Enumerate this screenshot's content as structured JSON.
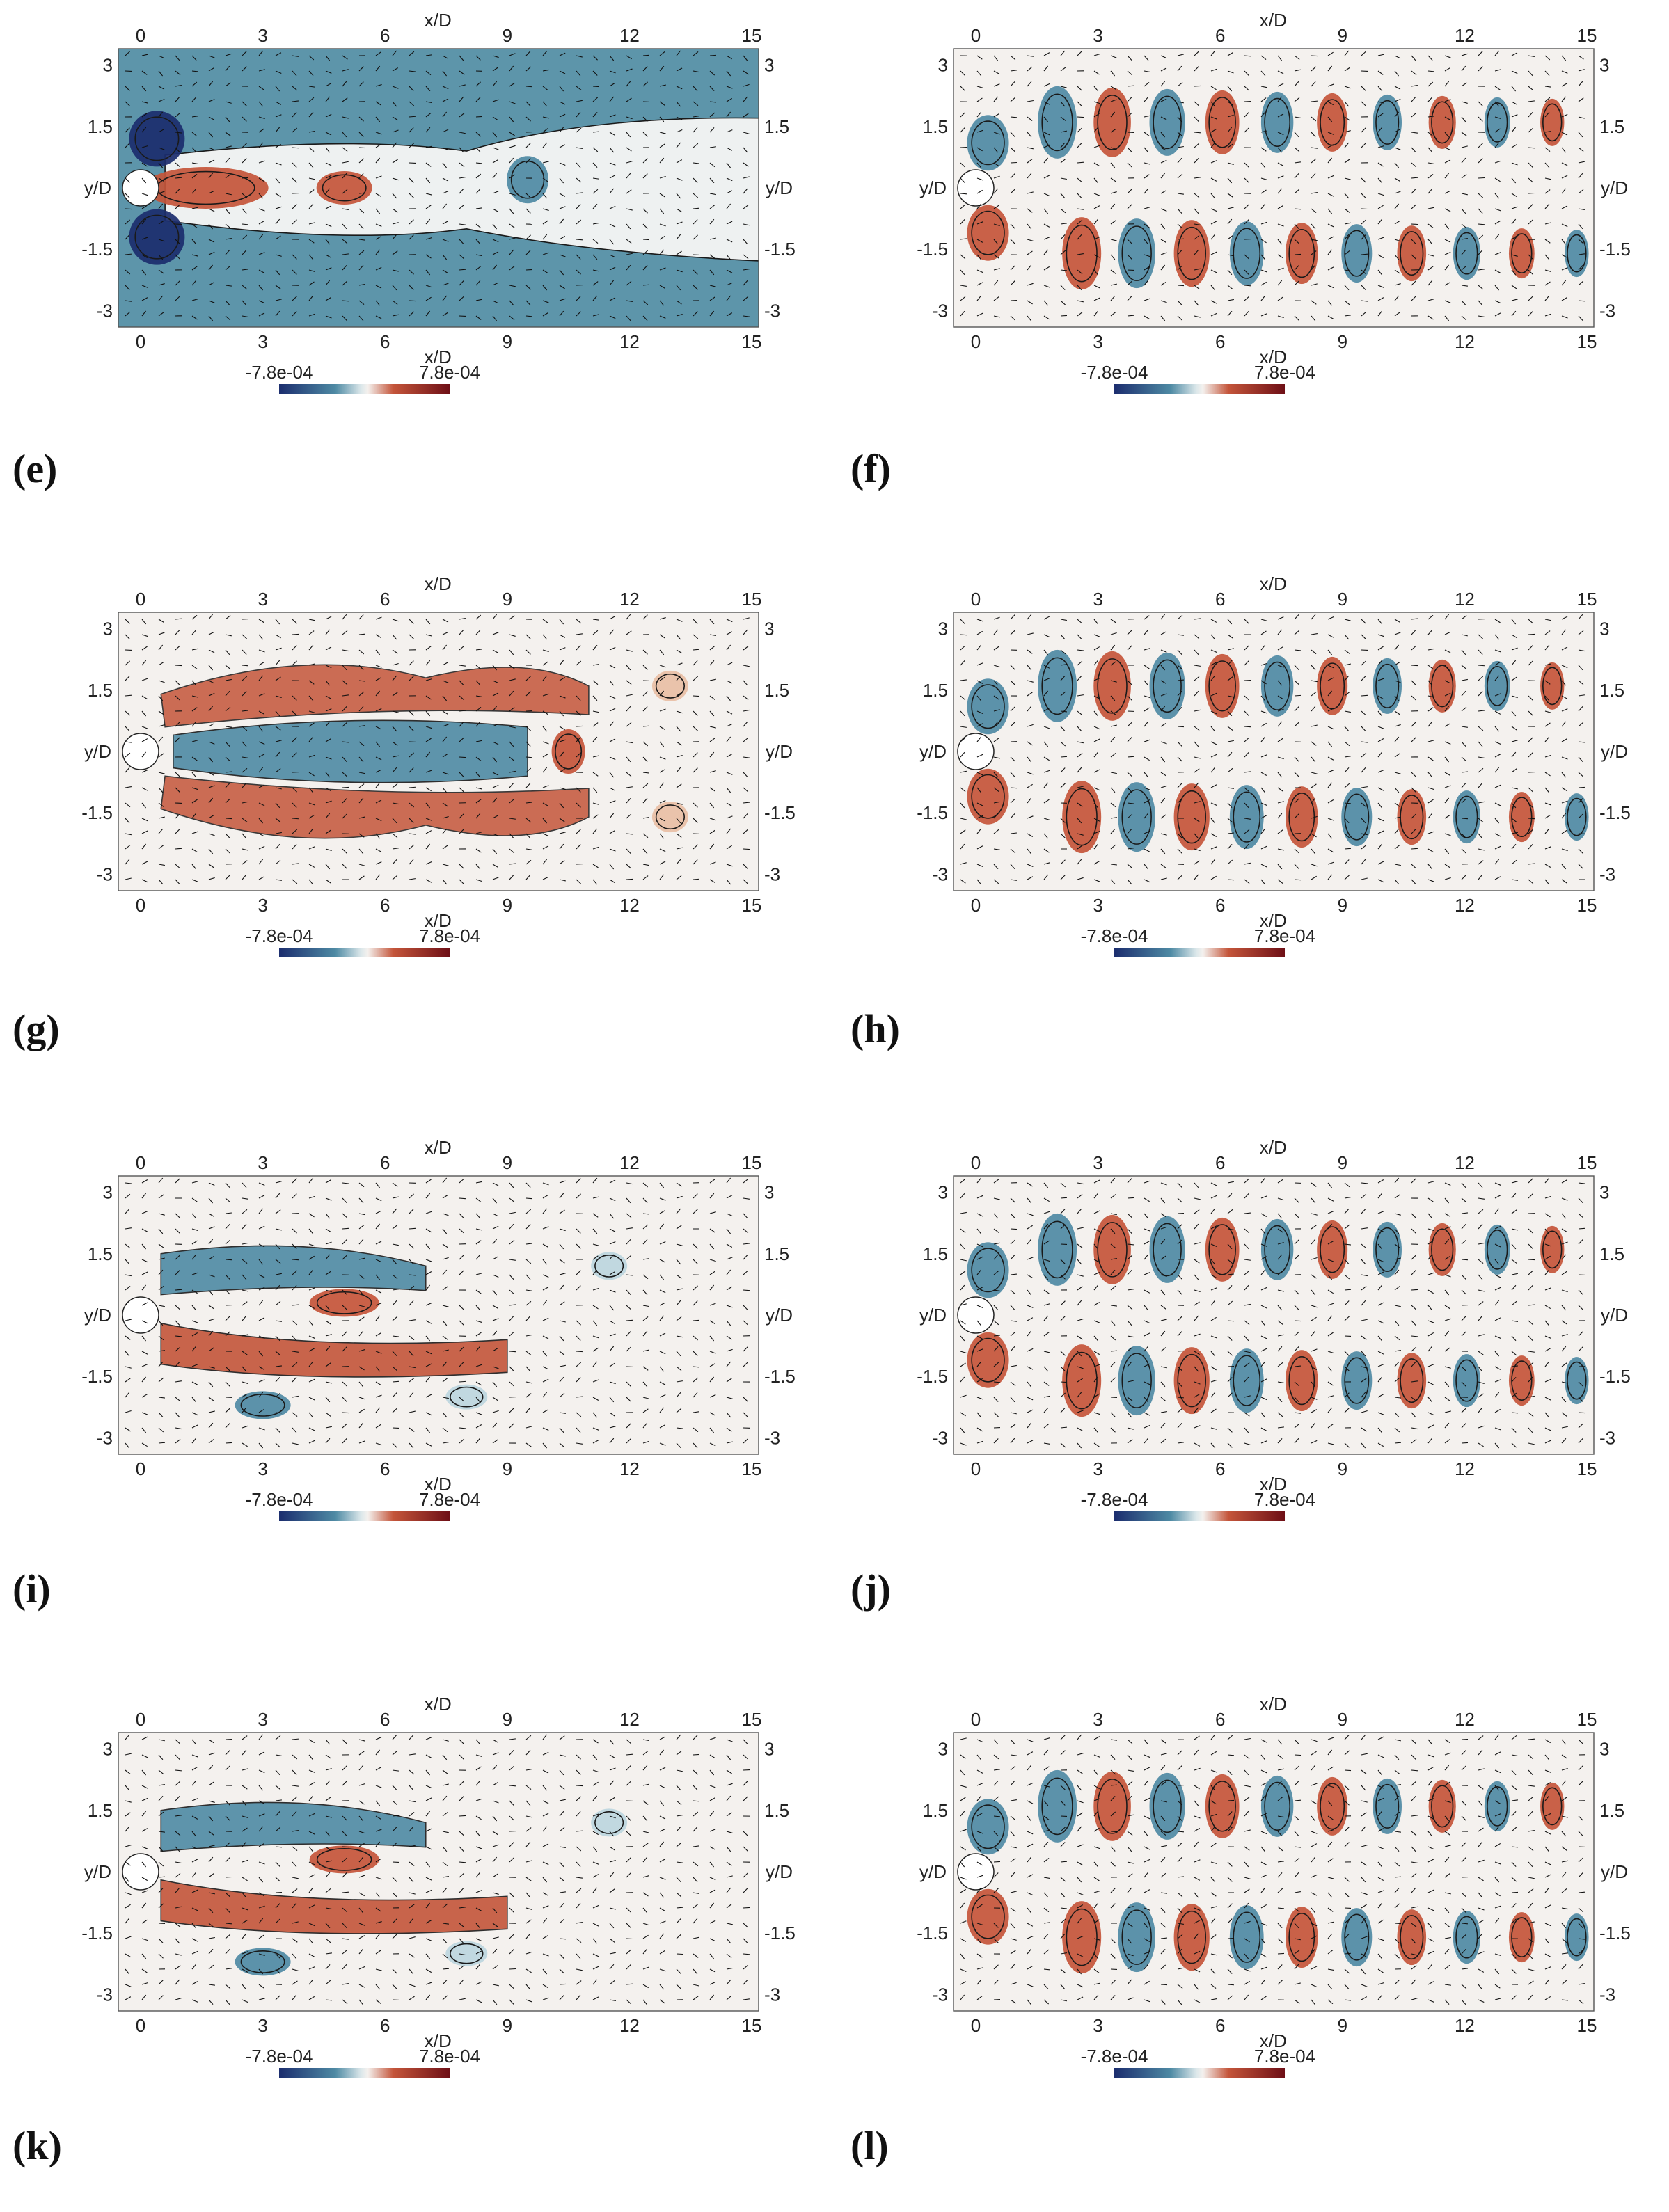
{
  "axes": {
    "xlabel": "x/D",
    "ylabel": "y/D",
    "xticks": [
      "0",
      "3",
      "6",
      "9",
      "12",
      "15"
    ],
    "yticks": [
      "3",
      "1.5",
      "",
      "-1.5",
      "-3"
    ],
    "colorbar_min": "-7.8e-04",
    "colorbar_max": "7.8e-04"
  },
  "colors": {
    "negative_strong": "#1b2d6e",
    "negative_mid": "#4e8aa4",
    "negative_light": "#bcd6de",
    "neutral": "#f4f1ee",
    "positive_light": "#e8bfa5",
    "positive_mid": "#c4553a",
    "positive_strong": "#6e0f16"
  },
  "panels": [
    {
      "id": "e-plot",
      "label": "",
      "pattern": "mean-blue"
    },
    {
      "id": "f-plot",
      "label": "",
      "pattern": "alternating"
    },
    {
      "id": "e-row",
      "label": "(e)",
      "pattern": "none"
    },
    {
      "id": "f-row",
      "label": "(f)",
      "pattern": "none"
    },
    {
      "id": "g",
      "label": "(g)",
      "pattern": "shear"
    },
    {
      "id": "h",
      "label": "(h)",
      "pattern": "alternating"
    },
    {
      "id": "i",
      "label": "(i)",
      "pattern": "shear-inverse"
    },
    {
      "id": "j",
      "label": "(j)",
      "pattern": "alternating"
    },
    {
      "id": "k",
      "label": "(k)",
      "pattern": "shear-inverse"
    },
    {
      "id": "l",
      "label": "(l)",
      "pattern": "alternating"
    }
  ],
  "labels": {
    "e": "(e)",
    "f": "(f)",
    "g": "(g)",
    "h": "(h)",
    "i": "(i)",
    "j": "(j)",
    "k": "(k)",
    "l": "(l)"
  }
}
